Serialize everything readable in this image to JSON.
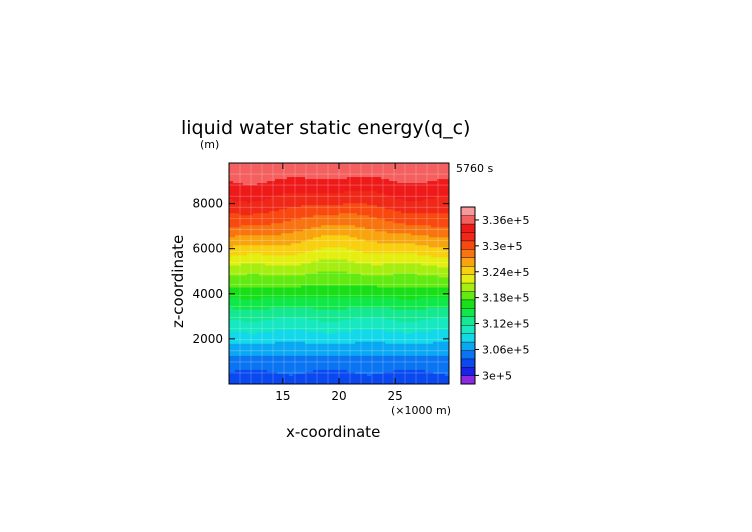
{
  "chart_data": {
    "type": "heatmap",
    "title": "liquid water static energy(q_c)",
    "ylabel": "z-coordinate",
    "xlabel": "x-coordinate",
    "y_unit": "(m)",
    "x_unit": "(×1000 m)",
    "time_label": "5760 s",
    "xlim": [
      10.2,
      29.8
    ],
    "ylim": [
      0,
      9800
    ],
    "x_ticks": [
      15,
      20,
      25
    ],
    "x_tick_labels": [
      "15",
      "20",
      "25"
    ],
    "y_ticks": [
      2000,
      4000,
      6000,
      8000
    ],
    "y_tick_labels": [
      "2000",
      "4000",
      "6000",
      "8000"
    ],
    "colorbar": {
      "min": 298000,
      "max": 339000,
      "step": 2000,
      "tick_values": [
        300000,
        306000,
        312000,
        318000,
        324000,
        330000,
        336000
      ],
      "tick_labels": [
        "3e+5",
        "3.06e+5",
        "3.12e+5",
        "3.18e+5",
        "3.24e+5",
        "3.3e+5",
        "3.36e+5"
      ]
    },
    "profile": {
      "z": [
        0,
        1000,
        2000,
        3000,
        4000,
        5000,
        6000,
        7000,
        8000,
        9000,
        9800
      ],
      "value": [
        302800,
        305000,
        308700,
        312500,
        316800,
        320800,
        325600,
        330100,
        333600,
        336100,
        338000
      ]
    },
    "central_bulge": {
      "x_center": 20,
      "x_halfwidth": 4.5,
      "z_center": 7000,
      "z_halfwidth": 1700,
      "amplitude": -2300
    },
    "grid": true,
    "colors": {
      "scale": [
        "#8a2be2",
        "#1a22e8",
        "#0a48f0",
        "#0a74f2",
        "#0aa8f2",
        "#12d8ea",
        "#16e8c0",
        "#14e890",
        "#10e84a",
        "#18e018",
        "#62ea12",
        "#a6ee10",
        "#e4ee10",
        "#f8d010",
        "#f8a410",
        "#f87410",
        "#f84a10",
        "#f02818",
        "#ee1a1a",
        "#f46060",
        "#f89898"
      ]
    }
  }
}
